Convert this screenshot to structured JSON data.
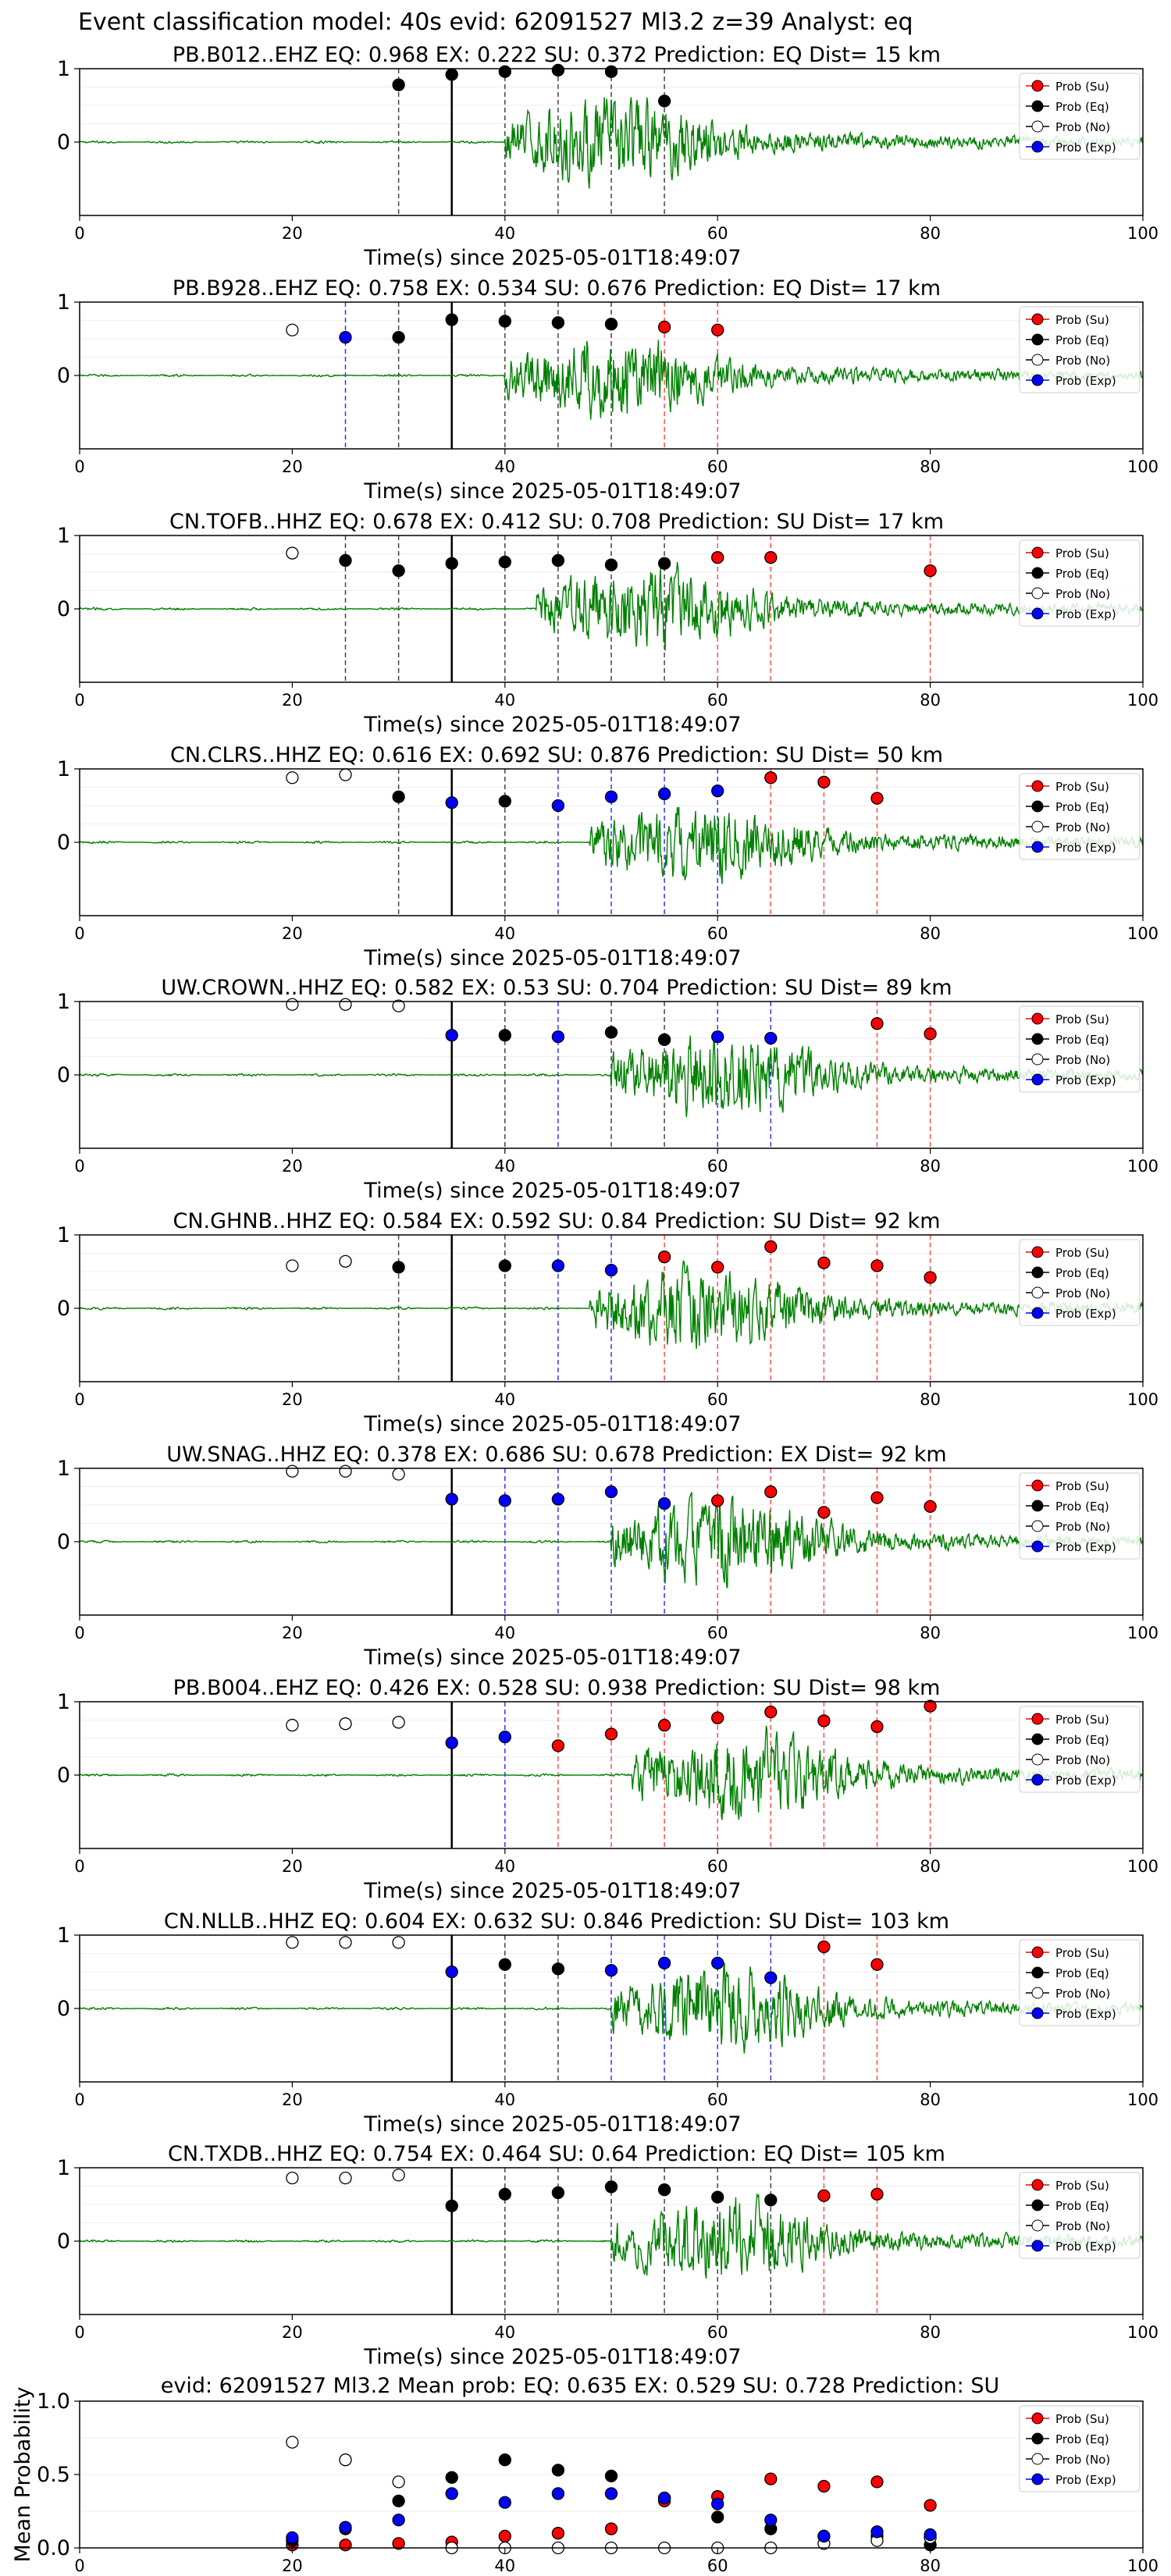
{
  "suptitle": "Event classification model: 40s evid: 62091527 Ml3.2 z=39 Analyst: eq",
  "colors": {
    "su": "#ff0000",
    "eq": "#000000",
    "no": "#ffffff",
    "exp": "#0000ff",
    "waveform": "#008000",
    "su_line": "#ff4d4d",
    "eq_line": "#444444",
    "exp_line": "#3333ff"
  },
  "legend": {
    "su": "Prob (Su)",
    "eq": "Prob (Eq)",
    "no": "Prob (No)",
    "exp": "Prob (Exp)"
  },
  "chart_data": [
    {
      "type": "scatter",
      "title": "PB.B012..EHZ   EQ: 0.968  EX: 0.222  SU: 0.372   Prediction: EQ    Dist= 15 km",
      "xlabel": "Time(s) since 2025-05-01T18:49:07",
      "ylabel": "",
      "xlim": [
        0,
        100
      ],
      "ylim": [
        -1,
        1
      ],
      "xticks": [
        "0",
        "20",
        "40",
        "60",
        "80",
        "100"
      ],
      "yticks": [
        "1",
        "0"
      ],
      "origin_time": 35,
      "onset": 40,
      "amplitude": 1.0,
      "grid": true,
      "legend_position": "top-right",
      "points": [
        {
          "t": 30,
          "cls": "eq",
          "p": 0.78
        },
        {
          "t": 35,
          "cls": "eq",
          "p": 0.92
        },
        {
          "t": 40,
          "cls": "eq",
          "p": 0.96
        },
        {
          "t": 45,
          "cls": "eq",
          "p": 0.98
        },
        {
          "t": 50,
          "cls": "eq",
          "p": 0.96
        },
        {
          "t": 55,
          "cls": "eq",
          "p": 0.56
        }
      ]
    },
    {
      "type": "scatter",
      "title": "PB.B928..EHZ   EQ: 0.758  EX: 0.534  SU: 0.676   Prediction: EQ    Dist= 17 km",
      "xlabel": "Time(s) since 2025-05-01T18:49:07",
      "ylabel": "",
      "xlim": [
        0,
        100
      ],
      "ylim": [
        -1,
        1
      ],
      "xticks": [
        "0",
        "20",
        "40",
        "60",
        "80",
        "100"
      ],
      "yticks": [
        "1",
        "0"
      ],
      "origin_time": 35,
      "onset": 40,
      "amplitude": 0.95,
      "grid": true,
      "legend_position": "top-right",
      "points": [
        {
          "t": 20,
          "cls": "no",
          "p": 0.62
        },
        {
          "t": 25,
          "cls": "exp",
          "p": 0.52
        },
        {
          "t": 30,
          "cls": "eq",
          "p": 0.52
        },
        {
          "t": 35,
          "cls": "eq",
          "p": 0.76
        },
        {
          "t": 40,
          "cls": "eq",
          "p": 0.74
        },
        {
          "t": 45,
          "cls": "eq",
          "p": 0.72
        },
        {
          "t": 50,
          "cls": "eq",
          "p": 0.7
        },
        {
          "t": 55,
          "cls": "su",
          "p": 0.66
        },
        {
          "t": 60,
          "cls": "su",
          "p": 0.62
        }
      ]
    },
    {
      "type": "scatter",
      "title": "CN.TOFB..HHZ   EQ: 0.678  EX: 0.412  SU: 0.708   Prediction: SU    Dist= 17 km",
      "xlabel": "Time(s) since 2025-05-01T18:49:07",
      "ylabel": "",
      "xlim": [
        0,
        100
      ],
      "ylim": [
        -1,
        1
      ],
      "xticks": [
        "0",
        "20",
        "40",
        "60",
        "80",
        "100"
      ],
      "yticks": [
        "1",
        "0"
      ],
      "origin_time": 35,
      "onset": 43,
      "amplitude": 0.95,
      "grid": true,
      "legend_position": "top-right",
      "points": [
        {
          "t": 20,
          "cls": "no",
          "p": 0.76
        },
        {
          "t": 25,
          "cls": "eq",
          "p": 0.66
        },
        {
          "t": 30,
          "cls": "eq",
          "p": 0.52
        },
        {
          "t": 35,
          "cls": "eq",
          "p": 0.62
        },
        {
          "t": 40,
          "cls": "eq",
          "p": 0.64
        },
        {
          "t": 45,
          "cls": "eq",
          "p": 0.66
        },
        {
          "t": 50,
          "cls": "eq",
          "p": 0.6
        },
        {
          "t": 55,
          "cls": "eq",
          "p": 0.62
        },
        {
          "t": 60,
          "cls": "su",
          "p": 0.7
        },
        {
          "t": 65,
          "cls": "su",
          "p": 0.7
        },
        {
          "t": 80,
          "cls": "su",
          "p": 0.52
        }
      ]
    },
    {
      "type": "scatter",
      "title": "CN.CLRS..HHZ   EQ: 0.616  EX: 0.692  SU: 0.876   Prediction: SU    Dist= 50 km",
      "xlabel": "Time(s) since 2025-05-01T18:49:07",
      "ylabel": "",
      "xlim": [
        0,
        100
      ],
      "ylim": [
        -1,
        1
      ],
      "xticks": [
        "0",
        "20",
        "40",
        "60",
        "80",
        "100"
      ],
      "yticks": [
        "1",
        "0"
      ],
      "origin_time": 35,
      "onset": 48,
      "amplitude": 0.95,
      "grid": true,
      "legend_position": "top-right",
      "points": [
        {
          "t": 20,
          "cls": "no",
          "p": 0.88
        },
        {
          "t": 25,
          "cls": "no",
          "p": 0.92
        },
        {
          "t": 30,
          "cls": "eq",
          "p": 0.62
        },
        {
          "t": 35,
          "cls": "exp",
          "p": 0.54
        },
        {
          "t": 40,
          "cls": "eq",
          "p": 0.56
        },
        {
          "t": 45,
          "cls": "exp",
          "p": 0.5
        },
        {
          "t": 50,
          "cls": "exp",
          "p": 0.62
        },
        {
          "t": 55,
          "cls": "exp",
          "p": 0.66
        },
        {
          "t": 60,
          "cls": "exp",
          "p": 0.7
        },
        {
          "t": 65,
          "cls": "su",
          "p": 0.88
        },
        {
          "t": 70,
          "cls": "su",
          "p": 0.82
        },
        {
          "t": 75,
          "cls": "su",
          "p": 0.6
        }
      ]
    },
    {
      "type": "scatter",
      "title": "UW.CROWN..HHZ   EQ: 0.582  EX: 0.53  SU: 0.704   Prediction: SU    Dist= 89 km",
      "xlabel": "Time(s) since 2025-05-01T18:49:07",
      "ylabel": "",
      "xlim": [
        0,
        100
      ],
      "ylim": [
        -1,
        1
      ],
      "xticks": [
        "0",
        "20",
        "40",
        "60",
        "80",
        "100"
      ],
      "yticks": [
        "1",
        "0"
      ],
      "origin_time": 35,
      "onset": 50,
      "amplitude": 0.95,
      "grid": true,
      "legend_position": "top-right",
      "points": [
        {
          "t": 20,
          "cls": "no",
          "p": 0.96
        },
        {
          "t": 25,
          "cls": "no",
          "p": 0.96
        },
        {
          "t": 30,
          "cls": "no",
          "p": 0.94
        },
        {
          "t": 35,
          "cls": "exp",
          "p": 0.54
        },
        {
          "t": 40,
          "cls": "eq",
          "p": 0.54
        },
        {
          "t": 45,
          "cls": "exp",
          "p": 0.52
        },
        {
          "t": 50,
          "cls": "eq",
          "p": 0.58
        },
        {
          "t": 55,
          "cls": "eq",
          "p": 0.48
        },
        {
          "t": 60,
          "cls": "exp",
          "p": 0.52
        },
        {
          "t": 65,
          "cls": "exp",
          "p": 0.5
        },
        {
          "t": 75,
          "cls": "su",
          "p": 0.7
        },
        {
          "t": 80,
          "cls": "su",
          "p": 0.56
        }
      ]
    },
    {
      "type": "scatter",
      "title": "CN.GHNB..HHZ   EQ: 0.584  EX: 0.592  SU: 0.84   Prediction: SU    Dist= 92 km",
      "xlabel": "Time(s) since 2025-05-01T18:49:07",
      "ylabel": "",
      "xlim": [
        0,
        100
      ],
      "ylim": [
        -1,
        1
      ],
      "xticks": [
        "0",
        "20",
        "40",
        "60",
        "80",
        "100"
      ],
      "yticks": [
        "1",
        "0"
      ],
      "origin_time": 35,
      "onset": 48,
      "amplitude": 0.95,
      "grid": true,
      "legend_position": "top-right",
      "points": [
        {
          "t": 20,
          "cls": "no",
          "p": 0.58
        },
        {
          "t": 25,
          "cls": "no",
          "p": 0.64
        },
        {
          "t": 30,
          "cls": "eq",
          "p": 0.56
        },
        {
          "t": 40,
          "cls": "eq",
          "p": 0.58
        },
        {
          "t": 45,
          "cls": "exp",
          "p": 0.58
        },
        {
          "t": 50,
          "cls": "exp",
          "p": 0.52
        },
        {
          "t": 55,
          "cls": "su",
          "p": 0.7
        },
        {
          "t": 60,
          "cls": "su",
          "p": 0.56
        },
        {
          "t": 65,
          "cls": "su",
          "p": 0.84
        },
        {
          "t": 70,
          "cls": "su",
          "p": 0.62
        },
        {
          "t": 75,
          "cls": "su",
          "p": 0.58
        },
        {
          "t": 80,
          "cls": "su",
          "p": 0.42
        }
      ]
    },
    {
      "type": "scatter",
      "title": "UW.SNAG..HHZ   EQ: 0.378  EX: 0.686  SU: 0.678   Prediction: EX    Dist= 92 km",
      "xlabel": "Time(s) since 2025-05-01T18:49:07",
      "ylabel": "",
      "xlim": [
        0,
        100
      ],
      "ylim": [
        -1,
        1
      ],
      "xticks": [
        "0",
        "20",
        "40",
        "60",
        "80",
        "100"
      ],
      "yticks": [
        "1",
        "0"
      ],
      "origin_time": 35,
      "onset": 50,
      "amplitude": 1.0,
      "grid": true,
      "legend_position": "top-right",
      "points": [
        {
          "t": 20,
          "cls": "no",
          "p": 0.96
        },
        {
          "t": 25,
          "cls": "no",
          "p": 0.96
        },
        {
          "t": 30,
          "cls": "no",
          "p": 0.92
        },
        {
          "t": 35,
          "cls": "exp",
          "p": 0.58
        },
        {
          "t": 40,
          "cls": "exp",
          "p": 0.56
        },
        {
          "t": 45,
          "cls": "exp",
          "p": 0.58
        },
        {
          "t": 50,
          "cls": "exp",
          "p": 0.68
        },
        {
          "t": 55,
          "cls": "exp",
          "p": 0.52
        },
        {
          "t": 60,
          "cls": "su",
          "p": 0.56
        },
        {
          "t": 65,
          "cls": "su",
          "p": 0.68
        },
        {
          "t": 70,
          "cls": "su",
          "p": 0.4
        },
        {
          "t": 75,
          "cls": "su",
          "p": 0.6
        },
        {
          "t": 80,
          "cls": "su",
          "p": 0.48
        }
      ]
    },
    {
      "type": "scatter",
      "title": "PB.B004..EHZ   EQ: 0.426  EX: 0.528  SU: 0.938   Prediction: SU    Dist= 98 km",
      "xlabel": "Time(s) since 2025-05-01T18:49:07",
      "ylabel": "",
      "xlim": [
        0,
        100
      ],
      "ylim": [
        -1,
        1
      ],
      "xticks": [
        "0",
        "20",
        "40",
        "60",
        "80",
        "100"
      ],
      "yticks": [
        "1",
        "0"
      ],
      "origin_time": 35,
      "onset": 52,
      "amplitude": 1.0,
      "grid": true,
      "legend_position": "top-right",
      "points": [
        {
          "t": 20,
          "cls": "no",
          "p": 0.68
        },
        {
          "t": 25,
          "cls": "no",
          "p": 0.7
        },
        {
          "t": 30,
          "cls": "no",
          "p": 0.72
        },
        {
          "t": 35,
          "cls": "exp",
          "p": 0.44
        },
        {
          "t": 40,
          "cls": "exp",
          "p": 0.52
        },
        {
          "t": 45,
          "cls": "su",
          "p": 0.4
        },
        {
          "t": 50,
          "cls": "su",
          "p": 0.56
        },
        {
          "t": 55,
          "cls": "su",
          "p": 0.68
        },
        {
          "t": 60,
          "cls": "su",
          "p": 0.78
        },
        {
          "t": 65,
          "cls": "su",
          "p": 0.86
        },
        {
          "t": 70,
          "cls": "su",
          "p": 0.74
        },
        {
          "t": 75,
          "cls": "su",
          "p": 0.66
        },
        {
          "t": 80,
          "cls": "su",
          "p": 0.94
        }
      ]
    },
    {
      "type": "scatter",
      "title": "CN.NLLB..HHZ   EQ: 0.604  EX: 0.632  SU: 0.846   Prediction: SU    Dist= 103 km",
      "xlabel": "Time(s) since 2025-05-01T18:49:07",
      "ylabel": "",
      "xlim": [
        0,
        100
      ],
      "ylim": [
        -1,
        1
      ],
      "xticks": [
        "0",
        "20",
        "40",
        "60",
        "80",
        "100"
      ],
      "yticks": [
        "1",
        "0"
      ],
      "origin_time": 35,
      "onset": 50,
      "amplitude": 0.95,
      "grid": true,
      "legend_position": "top-right",
      "points": [
        {
          "t": 20,
          "cls": "no",
          "p": 0.9
        },
        {
          "t": 25,
          "cls": "no",
          "p": 0.9
        },
        {
          "t": 30,
          "cls": "no",
          "p": 0.9
        },
        {
          "t": 35,
          "cls": "exp",
          "p": 0.5
        },
        {
          "t": 40,
          "cls": "eq",
          "p": 0.6
        },
        {
          "t": 45,
          "cls": "eq",
          "p": 0.54
        },
        {
          "t": 50,
          "cls": "exp",
          "p": 0.52
        },
        {
          "t": 55,
          "cls": "exp",
          "p": 0.62
        },
        {
          "t": 60,
          "cls": "exp",
          "p": 0.62
        },
        {
          "t": 65,
          "cls": "exp",
          "p": 0.42
        },
        {
          "t": 70,
          "cls": "su",
          "p": 0.84
        },
        {
          "t": 75,
          "cls": "su",
          "p": 0.6
        }
      ]
    },
    {
      "type": "scatter",
      "title": "CN.TXDB..HHZ   EQ: 0.754  EX: 0.464  SU: 0.64   Prediction: EQ    Dist= 105 km",
      "xlabel": "Time(s) since 2025-05-01T18:49:07",
      "ylabel": "",
      "xlim": [
        0,
        100
      ],
      "ylim": [
        -1,
        1
      ],
      "xticks": [
        "0",
        "20",
        "40",
        "60",
        "80",
        "100"
      ],
      "yticks": [
        "1",
        "0"
      ],
      "origin_time": 35,
      "onset": 50,
      "amplitude": 0.95,
      "grid": true,
      "legend_position": "top-right",
      "points": [
        {
          "t": 20,
          "cls": "no",
          "p": 0.86
        },
        {
          "t": 25,
          "cls": "no",
          "p": 0.86
        },
        {
          "t": 30,
          "cls": "no",
          "p": 0.9
        },
        {
          "t": 35,
          "cls": "eq",
          "p": 0.48
        },
        {
          "t": 40,
          "cls": "eq",
          "p": 0.64
        },
        {
          "t": 45,
          "cls": "eq",
          "p": 0.66
        },
        {
          "t": 50,
          "cls": "eq",
          "p": 0.74
        },
        {
          "t": 55,
          "cls": "eq",
          "p": 0.7
        },
        {
          "t": 60,
          "cls": "eq",
          "p": 0.6
        },
        {
          "t": 65,
          "cls": "eq",
          "p": 0.56
        },
        {
          "t": 70,
          "cls": "su",
          "p": 0.62
        },
        {
          "t": 75,
          "cls": "su",
          "p": 0.64
        }
      ]
    },
    {
      "type": "scatter",
      "title": "evid: 62091527   Ml3.2   Mean prob:   EQ: 0.635  EX: 0.529  SU: 0.728   Prediction: SU",
      "xlabel": "",
      "ylabel": "Mean Probability",
      "xlim": [
        0,
        100
      ],
      "ylim": [
        0,
        1
      ],
      "xticks": [
        "0",
        "20",
        "40",
        "60",
        "80",
        "100"
      ],
      "yticks": [
        "0.0",
        "0.5",
        "1.0"
      ],
      "grid": true,
      "legend_position": "top-right",
      "series": [
        {
          "cls": "su",
          "x": [
            20,
            25,
            30,
            35,
            40,
            45,
            50,
            55,
            60,
            65,
            70,
            75,
            80
          ],
          "y": [
            0.02,
            0.02,
            0.03,
            0.04,
            0.08,
            0.1,
            0.13,
            0.32,
            0.35,
            0.47,
            0.42,
            0.45,
            0.29
          ]
        },
        {
          "cls": "eq",
          "x": [
            20,
            25,
            30,
            35,
            40,
            45,
            50,
            55,
            60,
            65,
            70,
            75,
            80
          ],
          "y": [
            0.05,
            0.13,
            0.32,
            0.48,
            0.6,
            0.53,
            0.49,
            0.34,
            0.21,
            0.13,
            0.08,
            0.08,
            0.02
          ]
        },
        {
          "cls": "no",
          "x": [
            20,
            25,
            30,
            35,
            40,
            45,
            50,
            55,
            60,
            65,
            70,
            75,
            80
          ],
          "y": [
            0.72,
            0.6,
            0.45,
            0.0,
            0.0,
            0.0,
            0.0,
            0.0,
            0.0,
            0.0,
            0.03,
            0.05,
            0.07
          ]
        },
        {
          "cls": "exp",
          "x": [
            20,
            25,
            30,
            35,
            40,
            45,
            50,
            55,
            60,
            65,
            70,
            75,
            80
          ],
          "y": [
            0.07,
            0.14,
            0.19,
            0.37,
            0.31,
            0.37,
            0.37,
            0.34,
            0.3,
            0.19,
            0.08,
            0.11,
            0.09
          ]
        }
      ]
    }
  ]
}
